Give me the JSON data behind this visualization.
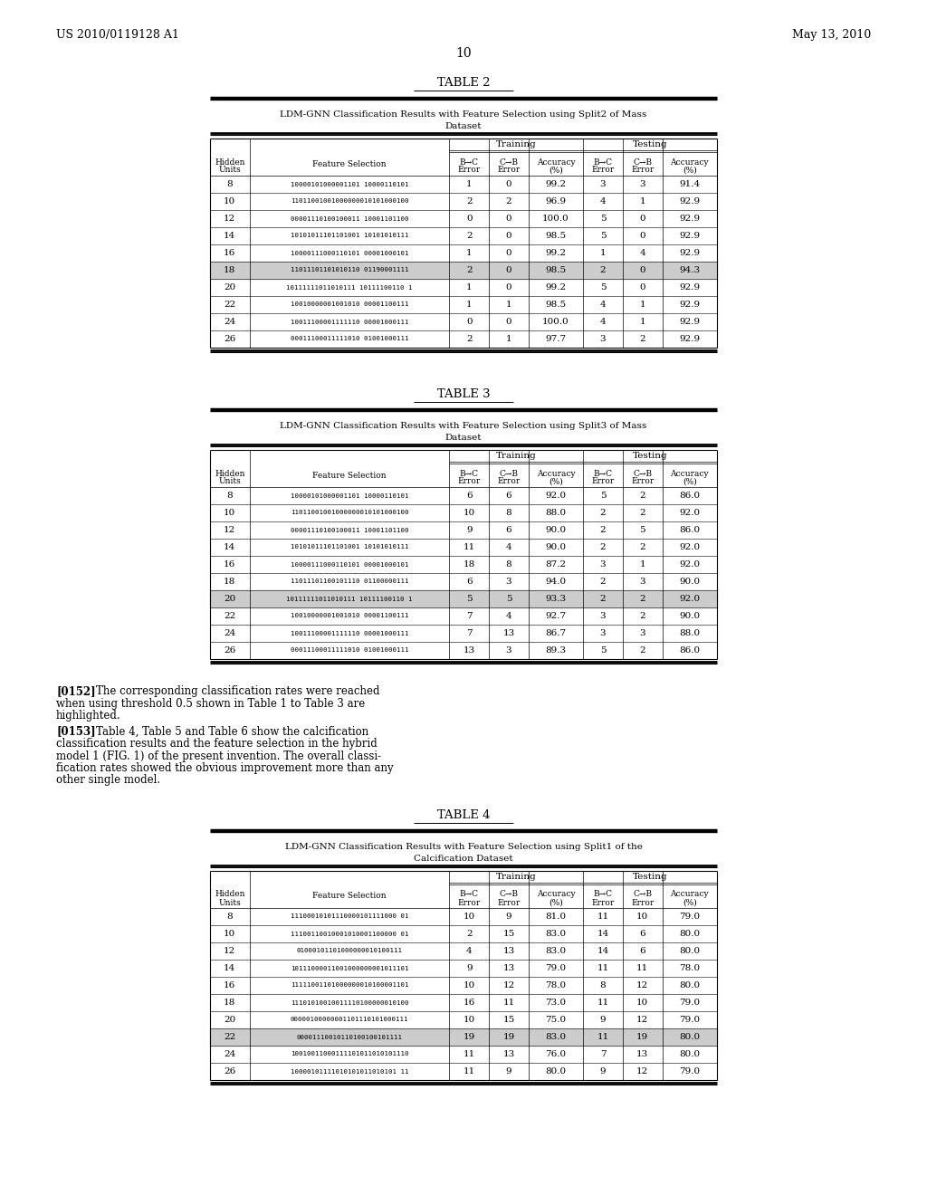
{
  "header_left": "US 2010/0119128 A1",
  "header_right": "May 13, 2010",
  "page_number": "10",
  "table2_title": "TABLE 2",
  "table2_subtitle1": "LDM-GNN Classification Results with Feature Selection using Split2 of Mass",
  "table2_subtitle2": "Dataset",
  "table3_title": "TABLE 3",
  "table3_subtitle1": "LDM-GNN Classification Results with Feature Selection using Split3 of Mass",
  "table3_subtitle2": "Dataset",
  "table4_title": "TABLE 4",
  "table4_subtitle1": "LDM-GNN Classification Results with Feature Selection using Split1 of the",
  "table4_subtitle2": "Calcification Dataset",
  "training_label": "Training",
  "testing_label": "Testing",
  "table2_data": [
    [
      "8",
      "10000101000001101 10000110101",
      "1",
      "0",
      "99.2",
      "3",
      "3",
      "91.4"
    ],
    [
      "10",
      "11011001001000000010101000100",
      "2",
      "2",
      "96.9",
      "4",
      "1",
      "92.9"
    ],
    [
      "12",
      "00001110100100011 10001101100",
      "0",
      "0",
      "100.0",
      "5",
      "0",
      "92.9"
    ],
    [
      "14",
      "10101011101101001 10101010111",
      "2",
      "0",
      "98.5",
      "5",
      "0",
      "92.9"
    ],
    [
      "16",
      "10000111000110101 00001000101",
      "1",
      "0",
      "99.2",
      "1",
      "4",
      "92.9"
    ],
    [
      "18",
      "11011101101010110 01190001111",
      "2",
      "0",
      "98.5",
      "2",
      "0",
      "94.3"
    ],
    [
      "20",
      "10111111011010111 10111100110 1",
      "1",
      "0",
      "99.2",
      "5",
      "0",
      "92.9"
    ],
    [
      "22",
      "10010000001001010 00001100111",
      "1",
      "1",
      "98.5",
      "4",
      "1",
      "92.9"
    ],
    [
      "24",
      "10011100001111110 00001000111",
      "0",
      "0",
      "100.0",
      "4",
      "1",
      "92.9"
    ],
    [
      "26",
      "00011100011111010 01001000111",
      "2",
      "1",
      "97.7",
      "3",
      "2",
      "92.9"
    ]
  ],
  "table2_highlight_row": 5,
  "table3_data": [
    [
      "8",
      "10000101000001101 10000110101",
      "6",
      "6",
      "92.0",
      "5",
      "2",
      "86.0"
    ],
    [
      "10",
      "11011001001000000010101000100",
      "10",
      "8",
      "88.0",
      "2",
      "2",
      "92.0"
    ],
    [
      "12",
      "00001110100100011 10001101100",
      "9",
      "6",
      "90.0",
      "2",
      "5",
      "86.0"
    ],
    [
      "14",
      "10101011101101001 10101010111",
      "11",
      "4",
      "90.0",
      "2",
      "2",
      "92.0"
    ],
    [
      "16",
      "10000111000110101 00001000101",
      "18",
      "8",
      "87.2",
      "3",
      "1",
      "92.0"
    ],
    [
      "18",
      "11011101100101110 01100000111",
      "6",
      "3",
      "94.0",
      "2",
      "3",
      "90.0"
    ],
    [
      "20",
      "10111111011010111 10111100110 1",
      "5",
      "5",
      "93.3",
      "2",
      "2",
      "92.0"
    ],
    [
      "22",
      "10010000001001010 00001100111",
      "7",
      "4",
      "92.7",
      "3",
      "2",
      "90.0"
    ],
    [
      "24",
      "10011100001111110 00001000111",
      "7",
      "13",
      "86.7",
      "3",
      "3",
      "88.0"
    ],
    [
      "26",
      "00011100011111010 01001000111",
      "13",
      "3",
      "89.3",
      "5",
      "2",
      "86.0"
    ]
  ],
  "table3_highlight_row": 6,
  "table4_data": [
    [
      "8",
      "11100010101110000101111000 01",
      "10",
      "9",
      "81.0",
      "11",
      "10",
      "79.0"
    ],
    [
      "10",
      "11100110010001010001100000 01",
      "2",
      "15",
      "83.0",
      "14",
      "6",
      "80.0"
    ],
    [
      "12",
      "01000101101000000010100111",
      "4",
      "13",
      "83.0",
      "14",
      "6",
      "80.0"
    ],
    [
      "14",
      "10111000011001000000001011101",
      "9",
      "13",
      "79.0",
      "11",
      "11",
      "78.0"
    ],
    [
      "16",
      "11111001101000000010100001101",
      "10",
      "12",
      "78.0",
      "8",
      "12",
      "80.0"
    ],
    [
      "18",
      "11101010010011110100000010100",
      "16",
      "11",
      "73.0",
      "11",
      "10",
      "79.0"
    ],
    [
      "20",
      "00000100000001101110101000111",
      "10",
      "15",
      "75.0",
      "9",
      "12",
      "79.0"
    ],
    [
      "22",
      "00001110010110100100101111",
      "19",
      "19",
      "83.0",
      "11",
      "19",
      "80.0"
    ],
    [
      "24",
      "10010011000111101011010101110",
      "11",
      "13",
      "76.0",
      "7",
      "13",
      "80.0"
    ],
    [
      "26",
      "10000101111010101011010101 11",
      "11",
      "9",
      "80.0",
      "9",
      "12",
      "79.0"
    ]
  ],
  "table4_highlight_row": 7,
  "para1_bold": "[0152]",
  "para1_text": "    The corresponding classification rates were reached when using threshold 0.5 shown in Table 1 to Table 3 are highlighted.",
  "para2_bold": "[0153]",
  "para2_text": "    Table 4, Table 5 and Table 6 show the calcification classification results and the feature selection in the hybrid model 1 (FIG. 1) of the present invention. The overall classi-fication rates showed the obvious improvement more than any other single model.",
  "bg_color": "#ffffff",
  "text_color": "#000000",
  "highlight_color": "#cccccc"
}
